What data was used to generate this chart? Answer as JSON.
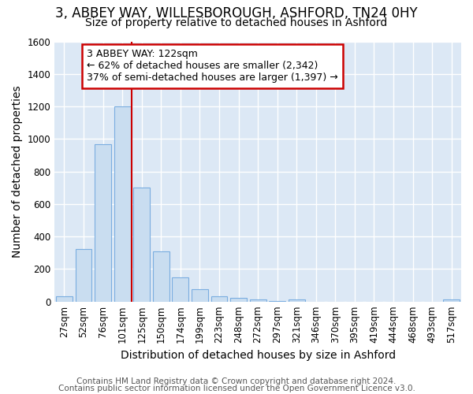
{
  "title_line1": "3, ABBEY WAY, WILLESBOROUGH, ASHFORD, TN24 0HY",
  "title_line2": "Size of property relative to detached houses in Ashford",
  "xlabel": "Distribution of detached houses by size in Ashford",
  "ylabel": "Number of detached properties",
  "bar_color": "#c9ddf0",
  "bar_edge_color": "#7aade0",
  "categories": [
    "27sqm",
    "52sqm",
    "76sqm",
    "101sqm",
    "125sqm",
    "150sqm",
    "174sqm",
    "199sqm",
    "223sqm",
    "248sqm",
    "272sqm",
    "297sqm",
    "321sqm",
    "346sqm",
    "370sqm",
    "395sqm",
    "419sqm",
    "444sqm",
    "468sqm",
    "493sqm",
    "517sqm"
  ],
  "values": [
    30,
    325,
    970,
    1200,
    700,
    310,
    150,
    75,
    30,
    22,
    14,
    5,
    14,
    0,
    0,
    0,
    0,
    0,
    0,
    0,
    14
  ],
  "ylim": [
    0,
    1600
  ],
  "yticks": [
    0,
    200,
    400,
    600,
    800,
    1000,
    1200,
    1400,
    1600
  ],
  "vline_index": 4,
  "annotation_text_line1": "3 ABBEY WAY: 122sqm",
  "annotation_text_line2": "← 62% of detached houses are smaller (2,342)",
  "annotation_text_line3": "37% of semi-detached houses are larger (1,397) →",
  "annotation_box_color": "#ffffff",
  "annotation_box_edge_color": "#cc0000",
  "vline_color": "#cc0000",
  "footer_line1": "Contains HM Land Registry data © Crown copyright and database right 2024.",
  "footer_line2": "Contains public sector information licensed under the Open Government Licence v3.0.",
  "fig_bg_color": "#ffffff",
  "plot_bg_color": "#dce8f5",
  "grid_color": "#ffffff",
  "title1_fontsize": 12,
  "title2_fontsize": 10,
  "axis_label_fontsize": 10,
  "tick_fontsize": 8.5,
  "annotation_fontsize": 9,
  "footer_fontsize": 7.5
}
